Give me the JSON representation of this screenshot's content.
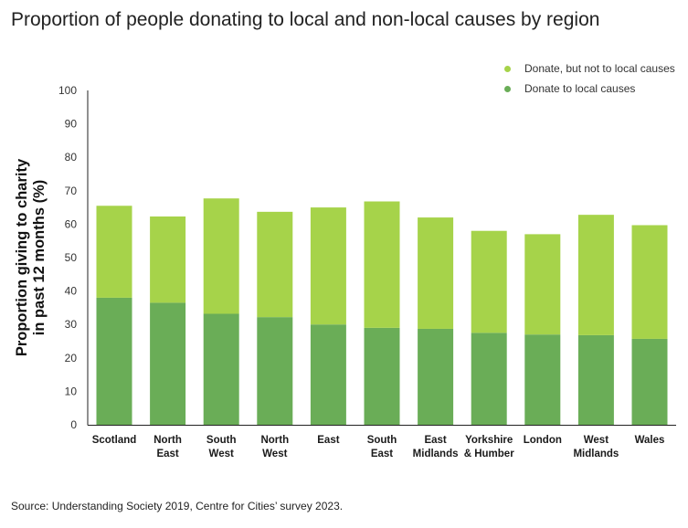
{
  "title": "Proportion of people donating to local and non-local causes by region",
  "source": "Source: Understanding Society 2019, Centre for Cities’ survey 2023.",
  "chart_data": {
    "type": "bar",
    "stacked": true,
    "categories": [
      [
        "Scotland"
      ],
      [
        "North",
        "East"
      ],
      [
        "South",
        "West"
      ],
      [
        "North",
        "West"
      ],
      [
        "East"
      ],
      [
        "South",
        "East"
      ],
      [
        "East",
        "Midlands"
      ],
      [
        "Yorkshire",
        "& Humber"
      ],
      [
        "London"
      ],
      [
        "West",
        "Midlands"
      ],
      [
        "Wales"
      ]
    ],
    "ylabel": [
      "Proportion giving to charity",
      "in past 12 months (%)"
    ],
    "xlabel": "",
    "ylim": [
      0,
      100
    ],
    "yticks": [
      0,
      10,
      20,
      30,
      40,
      50,
      60,
      70,
      80,
      90,
      100
    ],
    "legend_position": "top-right",
    "grid": false,
    "series": [
      {
        "name": "Donate, but not to local causes",
        "color": "#a6d34a",
        "values": [
          27.5,
          25.8,
          34.5,
          31.5,
          35,
          37.8,
          33.3,
          30.5,
          30,
          36,
          34
        ]
      },
      {
        "name": "Donate to local causes",
        "color": "#6aad57",
        "values": [
          38,
          36.5,
          33.2,
          32.2,
          30,
          29,
          28.7,
          27.5,
          27,
          26.8,
          25.7
        ]
      }
    ]
  }
}
